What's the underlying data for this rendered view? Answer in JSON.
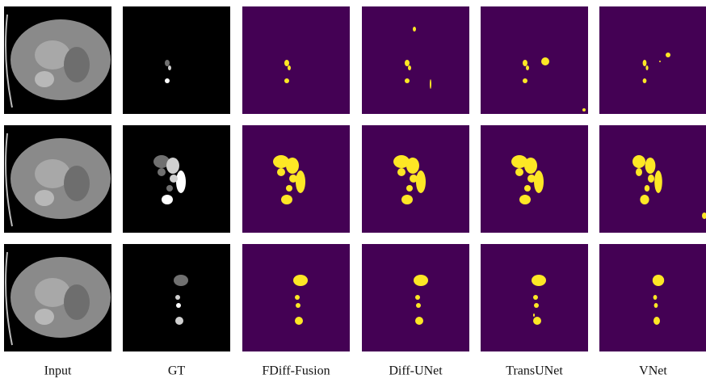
{
  "figure": {
    "columns": [
      "Input",
      "GT",
      "FDiff-Fusion",
      "Diff-UNet",
      "TransUNet",
      "VNet"
    ]
  }
}
